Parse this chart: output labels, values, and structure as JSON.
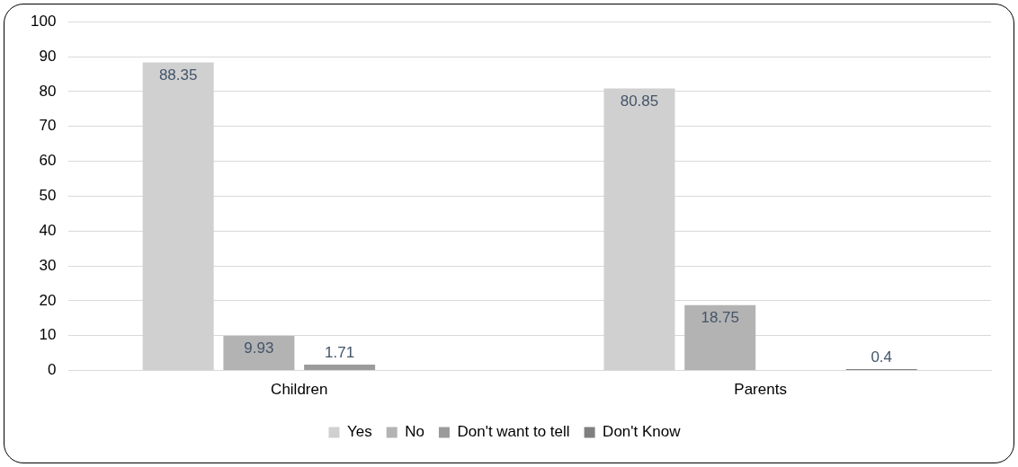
{
  "chart_data": {
    "type": "bar",
    "categories": [
      "Children",
      "Parents"
    ],
    "series": [
      {
        "name": "Yes",
        "color": "#d0d0d0",
        "values": [
          88.35,
          80.85
        ]
      },
      {
        "name": "No",
        "color": "#b3b3b3",
        "values": [
          9.93,
          18.75
        ]
      },
      {
        "name": "Don't want to tell",
        "color": "#9b9b9b",
        "values": [
          1.71,
          null
        ]
      },
      {
        "name": "Don't Know",
        "color": "#7f7f7f",
        "values": [
          null,
          0.4
        ]
      }
    ],
    "ylim": [
      0,
      100
    ],
    "yticks": [
      0,
      10,
      20,
      30,
      40,
      50,
      60,
      70,
      80,
      90,
      100
    ],
    "grid": "y",
    "legend": "bottom",
    "data_labels": true
  }
}
